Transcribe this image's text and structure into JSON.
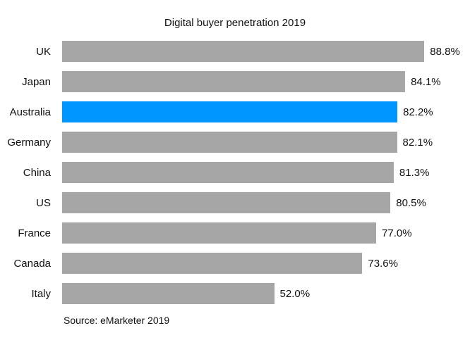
{
  "title": "Digital buyer penetration 2019",
  "source": "Source: eMarketer 2019",
  "colors": {
    "bar_default": "#a6a6a6",
    "bar_highlight": "#0096ff",
    "text": "#111111",
    "background": "#ffffff"
  },
  "chart_data": {
    "type": "bar",
    "orientation": "horizontal",
    "title": "Digital buyer penetration 2019",
    "xlabel": "",
    "ylabel": "",
    "xlim": [
      0,
      100
    ],
    "grid": false,
    "legend": false,
    "categories": [
      "UK",
      "Japan",
      "Australia",
      "Germany",
      "China",
      "US",
      "France",
      "Canada",
      "Italy"
    ],
    "values": [
      88.8,
      84.1,
      82.2,
      82.1,
      81.3,
      80.5,
      77.0,
      73.6,
      52.0
    ],
    "value_labels": [
      "88.8%",
      "84.1%",
      "82.2%",
      "82.1%",
      "81.3%",
      "80.5%",
      "77.0%",
      "73.6%",
      "52.0%"
    ],
    "highlighted_category": "Australia",
    "source_note": "Source: eMarketer 2019"
  }
}
